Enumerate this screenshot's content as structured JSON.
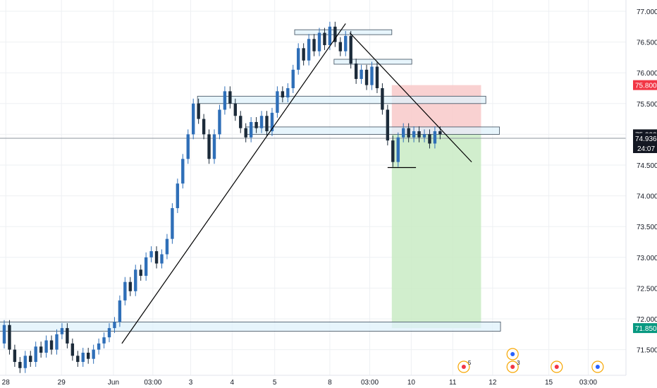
{
  "chart_data": {
    "type": "candlestick",
    "title": "",
    "xlabel": "",
    "ylabel": "",
    "ylim": [
      71.1,
      77.1
    ],
    "grid": true,
    "colors": {
      "up": "#2f6fb8",
      "down": "#1c2b3a",
      "grid": "#eef0f3",
      "axis_text": "#131722",
      "zone_fill": "#dff2fb",
      "zone_border": "#3a4a5a",
      "stop_zone": "#f8c9c9",
      "target_zone": "#c9ebc4",
      "price_line": "#8d949e"
    },
    "y_ticks": [
      "77.000",
      "76.500",
      "76.000",
      "75.500",
      "75.000",
      "74.500",
      "74.000",
      "73.500",
      "73.000",
      "72.500",
      "72.000",
      "71.500"
    ],
    "x_ticks": [
      {
        "label": "28",
        "t": 0.3
      },
      {
        "label": "29",
        "t": 10.9
      },
      {
        "label": "Jun",
        "t": 20.8
      },
      {
        "label": "03:00",
        "t": 28.3
      },
      {
        "label": "3",
        "t": 35.5
      },
      {
        "label": "4",
        "t": 43.4
      },
      {
        "label": "5",
        "t": 51.5
      },
      {
        "label": "8",
        "t": 62.0
      },
      {
        "label": "03:00",
        "t": 69.6
      },
      {
        "label": "10",
        "t": 77.5
      },
      {
        "label": "11",
        "t": 85.4
      },
      {
        "label": "12",
        "t": 93.0
      },
      {
        "label": "15",
        "t": 103.7
      },
      {
        "label": "03:00",
        "t": 111.2
      }
    ],
    "price_labels": [
      {
        "value": 75.8,
        "label": "75.800",
        "color": "#f23645"
      },
      {
        "value": 75.0,
        "label": "75.000",
        "color": "#131722"
      },
      {
        "value": 74.936,
        "label": "74.936",
        "color": "#131722"
      },
      {
        "value": 71.85,
        "label": "71.850",
        "color": "#089981"
      }
    ],
    "countdown": "24:07",
    "current_price": 74.936,
    "candles": [
      [
        0,
        71.6,
        71.9
      ],
      [
        1,
        71.9,
        71.5
      ],
      [
        2,
        71.5,
        71.3
      ],
      [
        3,
        71.3,
        71.2
      ],
      [
        4,
        71.2,
        71.4
      ],
      [
        5,
        71.4,
        71.3
      ],
      [
        6,
        71.3,
        71.55
      ],
      [
        7,
        71.55,
        71.45
      ],
      [
        8,
        71.45,
        71.65
      ],
      [
        9,
        71.65,
        71.5
      ],
      [
        10,
        71.5,
        71.75
      ],
      [
        11,
        71.75,
        71.85
      ],
      [
        12,
        71.85,
        71.6
      ],
      [
        13,
        71.6,
        71.4
      ],
      [
        14,
        71.4,
        71.3
      ],
      [
        15,
        71.3,
        71.45
      ],
      [
        16,
        71.45,
        71.35
      ],
      [
        17,
        71.35,
        71.5
      ],
      [
        18,
        71.5,
        71.6
      ],
      [
        19,
        71.6,
        71.7
      ],
      [
        20,
        71.7,
        71.85
      ],
      [
        21,
        71.85,
        71.95
      ],
      [
        22,
        71.95,
        72.3
      ],
      [
        23,
        72.3,
        72.6
      ],
      [
        24,
        72.6,
        72.45
      ],
      [
        25,
        72.45,
        72.8
      ],
      [
        26,
        72.8,
        72.7
      ],
      [
        27,
        72.7,
        73.0
      ],
      [
        28,
        73.0,
        73.1
      ],
      [
        29,
        73.1,
        72.9
      ],
      [
        30,
        72.9,
        73.05
      ],
      [
        31,
        73.05,
        73.3
      ],
      [
        32,
        73.3,
        73.8
      ],
      [
        33,
        73.8,
        74.2
      ],
      [
        34,
        74.2,
        74.6
      ],
      [
        35,
        74.6,
        75.0
      ],
      [
        36,
        75.0,
        75.5
      ],
      [
        37,
        75.5,
        75.25
      ],
      [
        38,
        75.25,
        75.0
      ],
      [
        39,
        75.0,
        74.6
      ],
      [
        40,
        74.6,
        75.0
      ],
      [
        41,
        75.0,
        75.4
      ],
      [
        42,
        75.4,
        75.7
      ],
      [
        43,
        75.7,
        75.5
      ],
      [
        44,
        75.5,
        75.3
      ],
      [
        45,
        75.3,
        75.1
      ],
      [
        46,
        75.1,
        74.95
      ],
      [
        47,
        74.95,
        75.2
      ],
      [
        48,
        75.2,
        75.1
      ],
      [
        49,
        75.1,
        75.3
      ],
      [
        50,
        75.3,
        75.05
      ],
      [
        51,
        75.05,
        75.35
      ],
      [
        52,
        75.35,
        75.7
      ],
      [
        53,
        75.7,
        75.6
      ],
      [
        54,
        75.6,
        75.75
      ],
      [
        55,
        75.75,
        76.05
      ],
      [
        56,
        76.05,
        76.4
      ],
      [
        57,
        76.4,
        76.2
      ],
      [
        58,
        76.2,
        76.55
      ],
      [
        59,
        76.55,
        76.35
      ],
      [
        60,
        76.35,
        76.65
      ],
      [
        61,
        76.65,
        76.45
      ],
      [
        62,
        76.45,
        76.75
      ],
      [
        63,
        76.75,
        76.5
      ],
      [
        64,
        76.5,
        76.35
      ],
      [
        65,
        76.35,
        76.6
      ],
      [
        66,
        76.6,
        76.15
      ],
      [
        67,
        76.15,
        75.9
      ],
      [
        68,
        75.9,
        76.05
      ],
      [
        69,
        76.05,
        75.8
      ],
      [
        70,
        75.8,
        76.1
      ],
      [
        71,
        76.1,
        75.75
      ],
      [
        72,
        75.75,
        75.4
      ],
      [
        73,
        75.4,
        74.9
      ],
      [
        74,
        74.9,
        74.55
      ],
      [
        75,
        74.55,
        74.95
      ],
      [
        76,
        74.95,
        75.1
      ],
      [
        77,
        75.1,
        74.95
      ],
      [
        78,
        74.95,
        75.05
      ],
      [
        79,
        75.05,
        74.95
      ],
      [
        80,
        74.95,
        75.0
      ],
      [
        81,
        75.0,
        74.85
      ],
      [
        82,
        74.85,
        75.05
      ],
      [
        83,
        75.05,
        75.0
      ]
    ],
    "trendlines": [
      {
        "from": [
          22.4,
          71.6
        ],
        "to": [
          65.0,
          76.8
        ]
      },
      {
        "from": [
          65.8,
          76.65
        ],
        "to": [
          89.0,
          74.55
        ]
      }
    ],
    "support_line": {
      "from": [
        73.0,
        74.46
      ],
      "to": [
        78.4,
        74.46
      ]
    },
    "zones": [
      {
        "t0": -1.0,
        "t1": 94.5,
        "top": 71.95,
        "bottom": 71.8
      },
      {
        "t0": 36.8,
        "t1": 91.7,
        "top": 75.62,
        "bottom": 75.5
      },
      {
        "t0": 46.0,
        "t1": 94.3,
        "top": 75.12,
        "bottom": 75.0
      },
      {
        "t0": 55.3,
        "t1": 73.8,
        "top": 76.7,
        "bottom": 76.62
      },
      {
        "t0": 62.8,
        "t1": 77.6,
        "top": 76.22,
        "bottom": 76.14
      }
    ],
    "risk_box": {
      "t0": 73.8,
      "t1": 90.8,
      "entry": 75.0,
      "stop": 75.8,
      "target": 71.85
    },
    "events": [
      {
        "t": 87.5,
        "marker": "5"
      },
      {
        "t": 96.8,
        "marker": "3"
      },
      {
        "t": 96.8,
        "marker": ""
      },
      {
        "t": 105.2,
        "marker": ""
      },
      {
        "t": 113.0,
        "marker": ""
      }
    ]
  }
}
